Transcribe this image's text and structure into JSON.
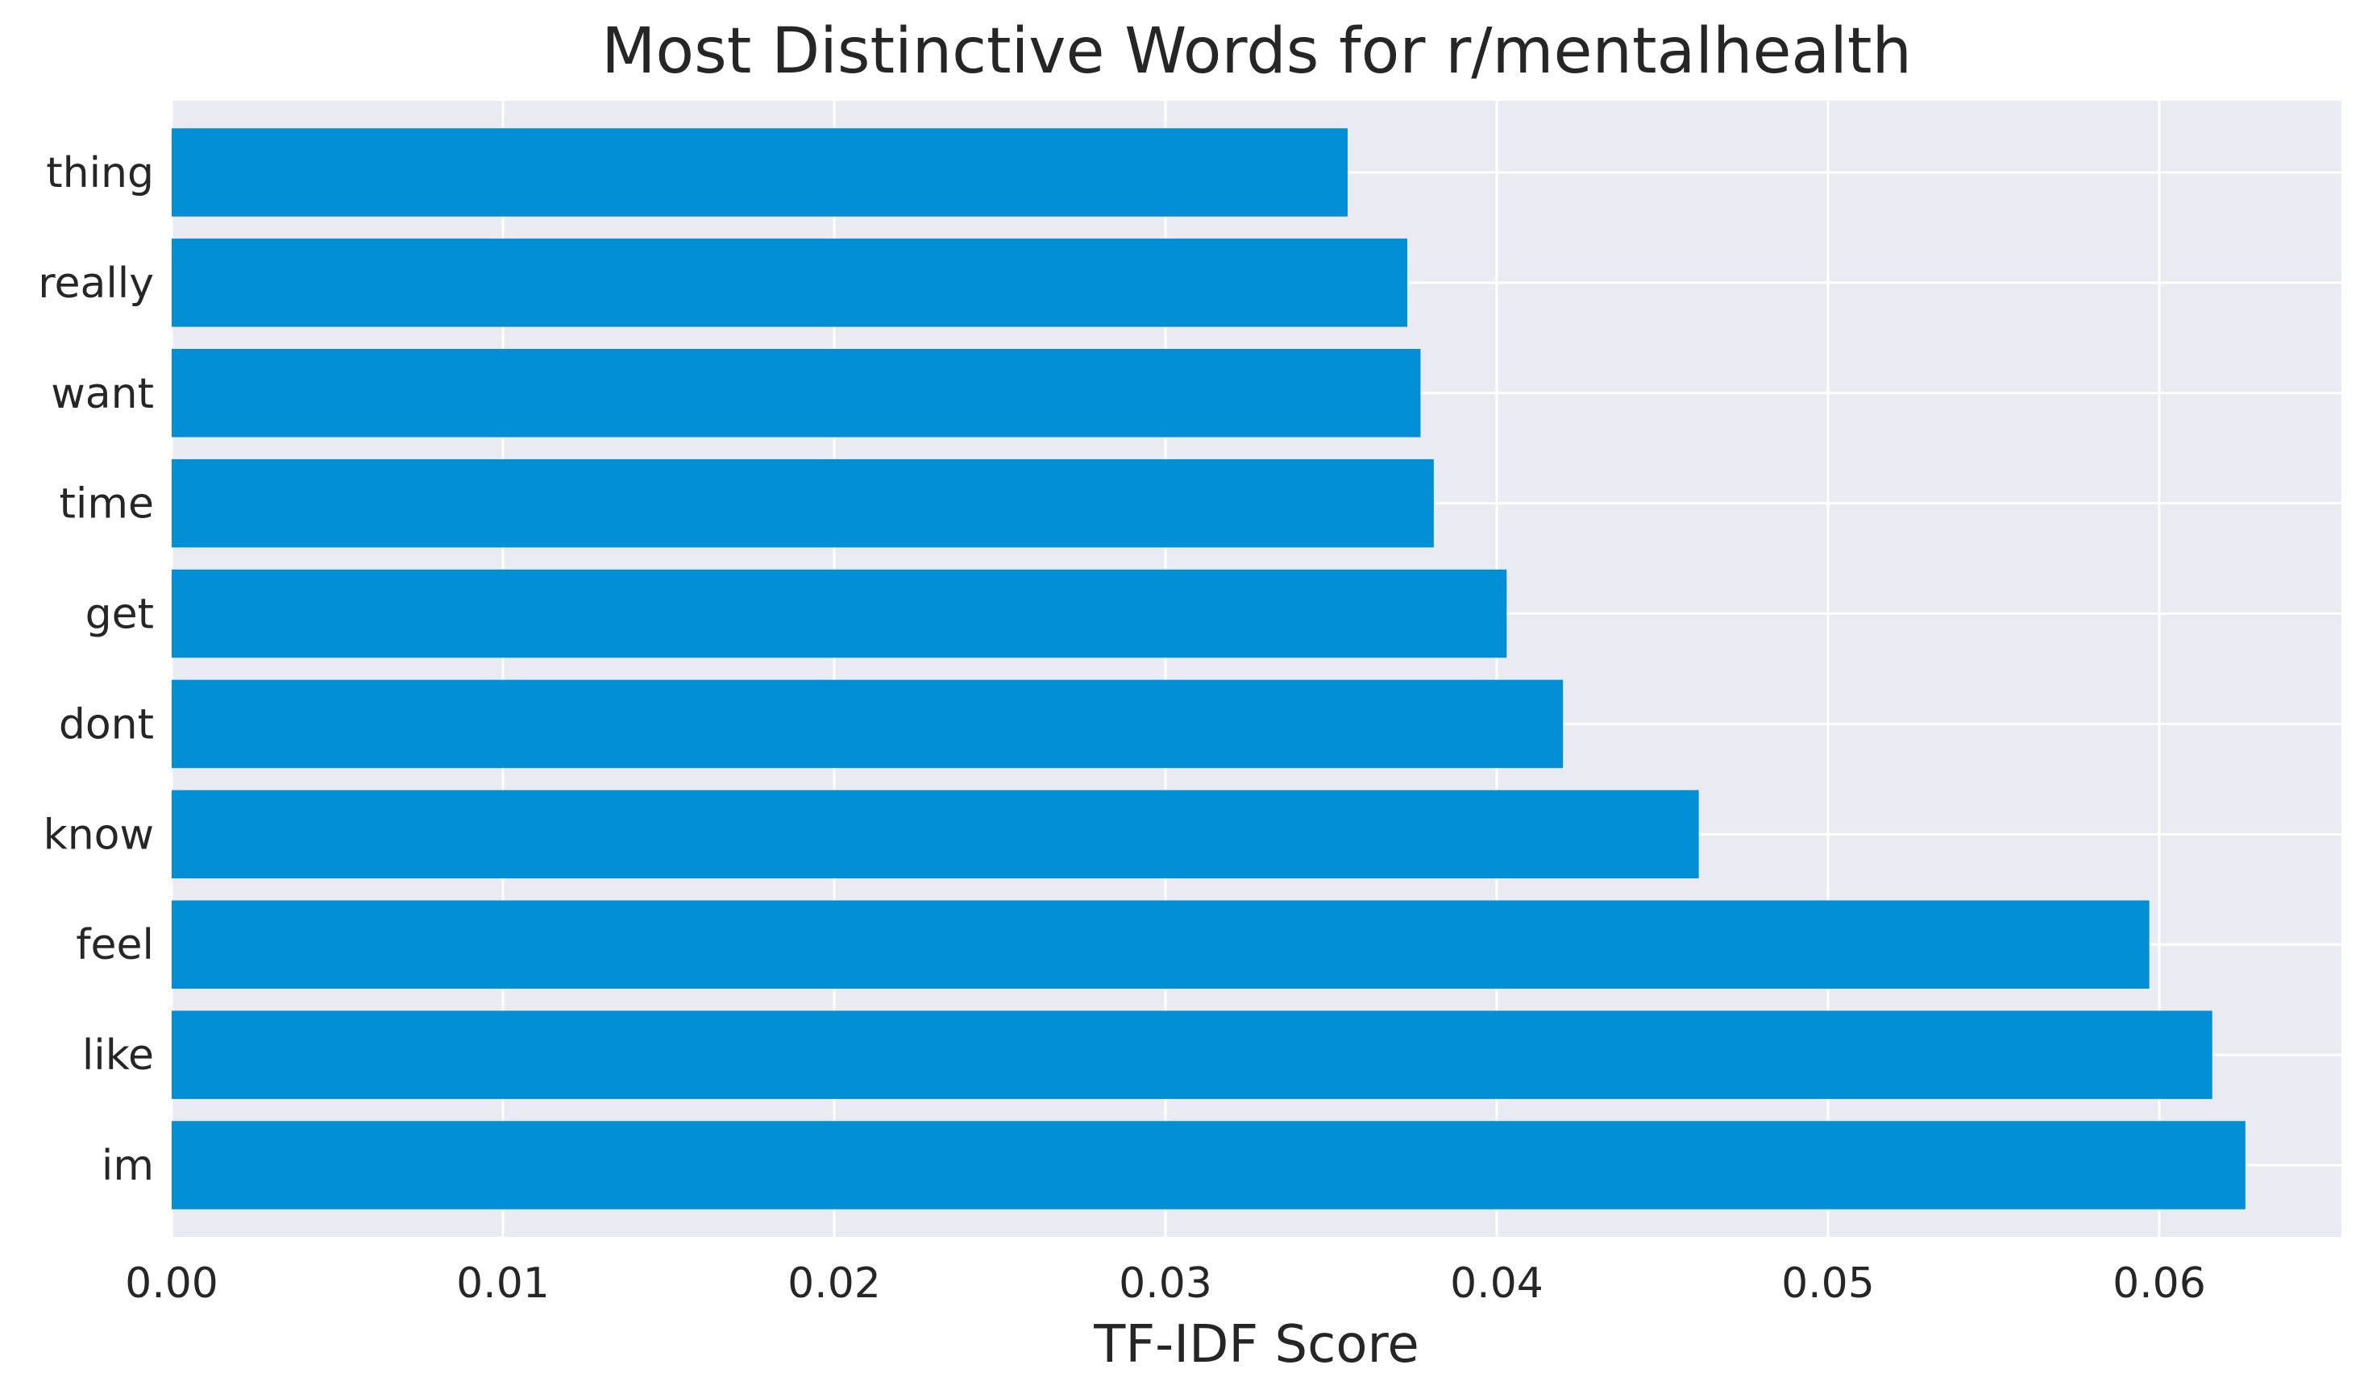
{
  "chart_data": {
    "type": "bar",
    "orientation": "horizontal",
    "title": "Most Distinctive Words for r/mentalhealth",
    "xlabel": "TF-IDF Score",
    "ylabel": "",
    "categories": [
      "thing",
      "really",
      "want",
      "time",
      "get",
      "dont",
      "know",
      "feel",
      "like",
      "im"
    ],
    "values": [
      0.0355,
      0.0373,
      0.0377,
      0.0381,
      0.0403,
      0.042,
      0.0461,
      0.0597,
      0.0616,
      0.0626
    ],
    "xlim": [
      0,
      0.0655
    ],
    "xticks": [
      "0.00",
      "0.01",
      "0.02",
      "0.03",
      "0.04",
      "0.05",
      "0.06"
    ],
    "grid": true,
    "colors": {
      "bar": "#028fd5",
      "plot_background": "#eaeaf2",
      "grid": "#ffffff",
      "text": "#262626"
    }
  }
}
